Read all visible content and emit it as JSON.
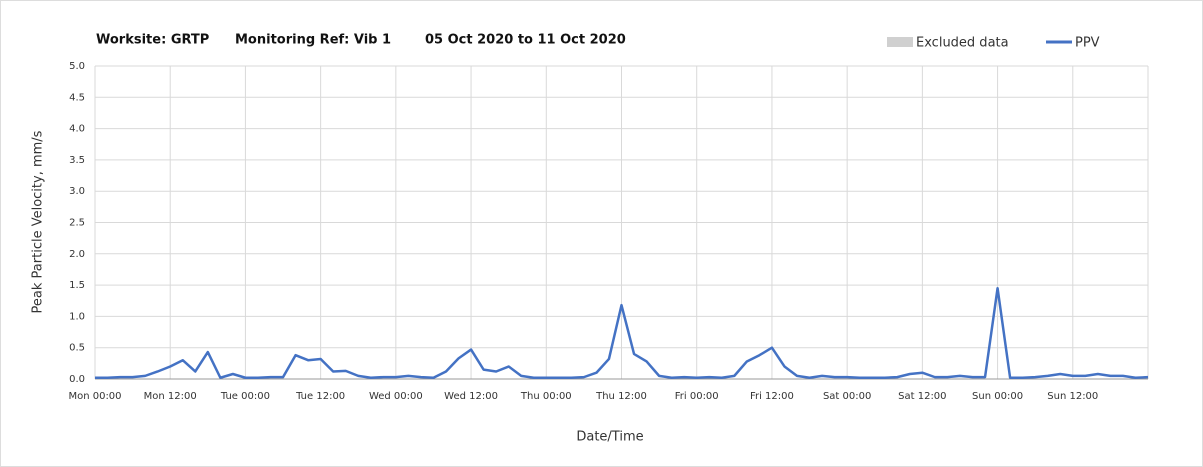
{
  "chart_data": {
    "type": "line",
    "title_parts": [
      "Worksite: GRTP",
      "Monitoring Ref: Vib 1",
      "05 Oct 2020 to 11 Oct 2020"
    ],
    "x_label": "Date/Time",
    "y_label": "Peak Particle Velocity, mm/s",
    "legend": [
      {
        "name": "Excluded data",
        "color": "#d0d0d0"
      }
    ],
    "xlim": [
      0,
      168
    ],
    "ylim": [
      0,
      5
    ],
    "grid": true,
    "xticks": [
      {
        "value": 0,
        "label": "Mon 00:00"
      },
      {
        "value": 12,
        "label": "Mon 12:00"
      },
      {
        "value": 24,
        "label": "Tue 00:00"
      },
      {
        "value": 36,
        "label": "Tue 12:00"
      },
      {
        "value": 48,
        "label": "Wed 00:00"
      },
      {
        "value": 60,
        "label": "Wed 12:00"
      },
      {
        "value": 72,
        "label": "Thu 00:00"
      },
      {
        "value": 84,
        "label": "Thu 12:00"
      },
      {
        "value": 96,
        "label": "Fri 00:00"
      },
      {
        "value": 108,
        "label": "Fri 12:00"
      },
      {
        "value": 120,
        "label": "Sat 00:00"
      },
      {
        "value": 132,
        "label": "Sat 12:00"
      },
      {
        "value": 144,
        "label": "Sun 00:00"
      },
      {
        "value": 156,
        "label": "Sun 12:00"
      }
    ],
    "yticks": [
      {
        "value": 0,
        "label": "0.0"
      },
      {
        "value": 0.5,
        "label": "0.5"
      },
      {
        "value": 1,
        "label": "1.0"
      },
      {
        "value": 1.5,
        "label": "1.5"
      },
      {
        "value": 2,
        "label": "2.0"
      },
      {
        "value": 2.5,
        "label": "2.5"
      },
      {
        "value": 3,
        "label": "3.0"
      },
      {
        "value": 3.5,
        "label": "3.5"
      },
      {
        "value": 4,
        "label": "4.0"
      },
      {
        "value": 4.5,
        "label": "4.5"
      },
      {
        "value": 5,
        "label": "5.0"
      }
    ],
    "x": [
      0,
      2,
      4,
      6,
      8,
      10,
      12,
      14,
      16,
      18,
      20,
      22,
      24,
      26,
      28,
      30,
      32,
      34,
      36,
      38,
      40,
      42,
      44,
      46,
      48,
      50,
      52,
      54,
      56,
      58,
      60,
      62,
      64,
      66,
      68,
      70,
      72,
      74,
      76,
      78,
      80,
      82,
      84,
      86,
      88,
      90,
      92,
      94,
      96,
      98,
      100,
      102,
      104,
      106,
      108,
      110,
      112,
      114,
      116,
      118,
      120,
      122,
      124,
      126,
      128,
      130,
      132,
      134,
      136,
      138,
      140,
      142,
      144,
      146,
      148,
      150,
      152,
      154,
      156,
      158,
      160,
      162,
      164,
      166,
      168
    ],
    "series": [
      {
        "name": "PPV",
        "color": "#4472c4",
        "values": [
          0.02,
          0.02,
          0.03,
          0.03,
          0.05,
          0.12,
          0.2,
          0.3,
          0.12,
          0.43,
          0.02,
          0.08,
          0.02,
          0.02,
          0.03,
          0.03,
          0.38,
          0.3,
          0.32,
          0.12,
          0.13,
          0.05,
          0.02,
          0.03,
          0.03,
          0.05,
          0.03,
          0.02,
          0.12,
          0.33,
          0.47,
          0.15,
          0.12,
          0.2,
          0.05,
          0.02,
          0.02,
          0.02,
          0.02,
          0.03,
          0.1,
          0.32,
          1.18,
          0.4,
          0.28,
          0.05,
          0.02,
          0.03,
          0.02,
          0.03,
          0.02,
          0.05,
          0.28,
          0.38,
          0.5,
          0.2,
          0.05,
          0.02,
          0.05,
          0.03,
          0.03,
          0.02,
          0.02,
          0.02,
          0.03,
          0.08,
          0.1,
          0.03,
          0.03,
          0.05,
          0.03,
          0.03,
          1.45,
          0.02,
          0.02,
          0.03,
          0.05,
          0.08,
          0.05,
          0.05,
          0.08,
          0.05,
          0.05,
          0.02,
          0.03
        ]
      }
    ]
  }
}
